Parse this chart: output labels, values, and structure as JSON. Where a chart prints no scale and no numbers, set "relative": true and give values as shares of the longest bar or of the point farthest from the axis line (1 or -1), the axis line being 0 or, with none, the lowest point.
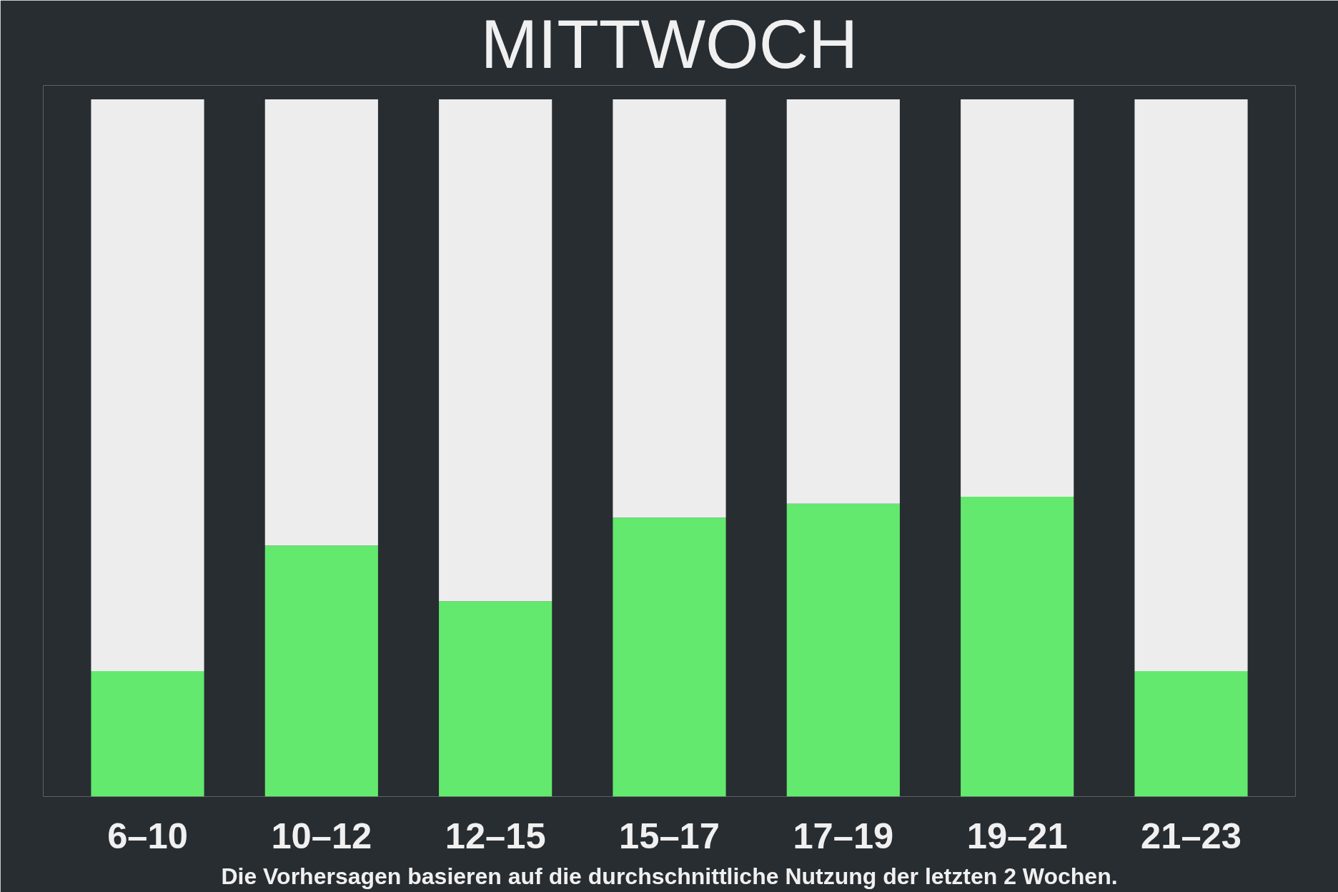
{
  "chart_data": {
    "type": "bar",
    "title": "MITTWOCH",
    "categories": [
      "6–10",
      "10–12",
      "12–15",
      "15–17",
      "17–19",
      "19–21",
      "21–23"
    ],
    "relative": true,
    "stacked": true,
    "series": [
      {
        "color": "#63e96e",
        "values": [
          0.18,
          0.36,
          0.28,
          0.4,
          0.42,
          0.43,
          0.18
        ]
      },
      {
        "color": "#ededed",
        "values": [
          0.82,
          0.64,
          0.72,
          0.6,
          0.58,
          0.57,
          0.82
        ]
      }
    ],
    "annotations": [
      "Die Vorhersagen basieren auf die durchschnittliche Nutzung der letzten 2 Wochen."
    ],
    "grid": false
  }
}
